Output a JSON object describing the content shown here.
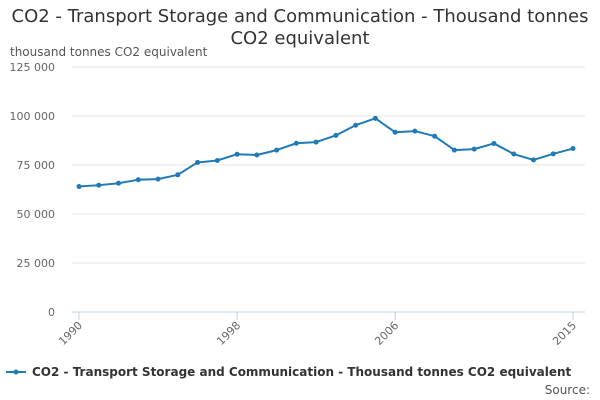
{
  "chart_data": {
    "type": "line",
    "title": "CO2 - Transport Storage and Communication - Thousand tonnes CO2 equivalent",
    "ylabel": "thousand tonnes CO2 equivalent",
    "xlabel": "",
    "x": [
      1990,
      1991,
      1992,
      1993,
      1994,
      1995,
      1996,
      1997,
      1998,
      1999,
      2000,
      2001,
      2002,
      2003,
      2004,
      2005,
      2006,
      2007,
      2008,
      2009,
      2010,
      2011,
      2012,
      2013,
      2014,
      2015
    ],
    "x_tick_labels": [
      "1990",
      "1998",
      "2006",
      "2015"
    ],
    "ylim": [
      0,
      125000
    ],
    "y_tick_labels": [
      "0",
      "25 000",
      "50 000",
      "75 000",
      "100 000",
      "125 000"
    ],
    "grid": true,
    "legend_position": "bottom",
    "series": [
      {
        "name": "CO2 - Transport Storage and Communication - Thousand tonnes CO2 equivalent",
        "color": "#1f7ab8",
        "values": [
          64000,
          64700,
          65700,
          67500,
          67800,
          70000,
          76300,
          77300,
          80500,
          80100,
          82600,
          86100,
          86700,
          90100,
          95300,
          98800,
          91700,
          92300,
          89700,
          82600,
          83100,
          86000,
          80600,
          77600,
          80700,
          83400
        ]
      }
    ]
  },
  "footer": {
    "source_label": "Source:"
  }
}
